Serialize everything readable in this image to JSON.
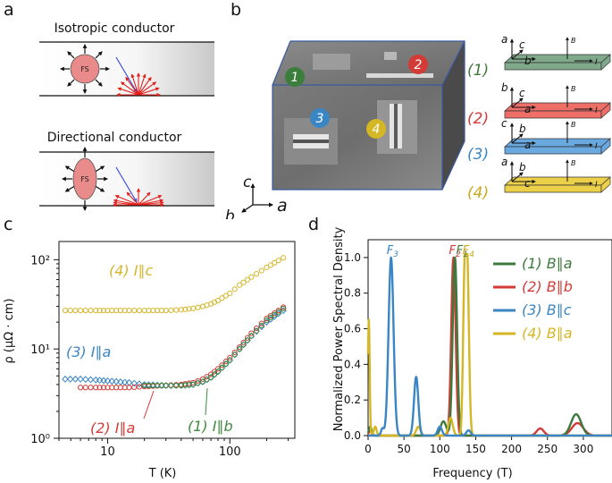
{
  "panel_labels": {
    "a": "a",
    "b": "b",
    "c": "c",
    "d": "d"
  },
  "panel_a": {
    "isotropic_title": "Isotropic conductor",
    "directional_title": "Directional conductor",
    "fs_label": "FS",
    "colors": {
      "fermi_surface": "#e98b8b",
      "arrow": "#e3201b",
      "incident": "#3b4fe0"
    }
  },
  "panel_b": {
    "sample_labels": [
      "1",
      "2",
      "3",
      "4"
    ],
    "sample_colors": [
      "#3b7d3b",
      "#d23b36",
      "#3a86c4",
      "#d5b625"
    ],
    "axes": {
      "c": "c",
      "b": "b",
      "a": "a"
    },
    "configs": [
      {
        "num": "(1)",
        "color": "#3e7a3e",
        "bar_color": "#7fa98a",
        "a1": "a",
        "a2": "c",
        "a3": "b",
        "B": "B",
        "I": "I"
      },
      {
        "num": "(2)",
        "color": "#d23b36",
        "bar_color": "#ee6e68",
        "a1": "b",
        "a2": "c",
        "a3": "a",
        "B": "B",
        "I": "I"
      },
      {
        "num": "(3)",
        "color": "#3a86c4",
        "bar_color": "#6aa8e0",
        "a1": "c",
        "a2": "b",
        "a3": "a",
        "B": "B",
        "I": "I"
      },
      {
        "num": "(4)",
        "color": "#c9a820",
        "bar_color": "#ecd04a",
        "a1": "a",
        "a2": "b",
        "a3": "c",
        "B": "B",
        "I": "I"
      }
    ]
  },
  "chart_data": [
    {
      "type": "scatter",
      "xlabel": "T (K)",
      "ylabel": "ρ (μΩ · cm)",
      "xscale": "log",
      "yscale": "log",
      "xlim": [
        4,
        340
      ],
      "ylim": [
        1,
        160
      ],
      "x_ticks": [
        "10",
        "100"
      ],
      "y_ticks": [
        "10⁰",
        "10¹",
        "10²"
      ],
      "series": [
        {
          "name": "(4) I∥c",
          "color": "#d6b62b",
          "x": [
            4.5,
            6,
            8,
            10,
            15,
            20,
            30,
            40,
            50,
            60,
            70,
            80,
            100,
            120,
            150,
            200,
            250,
            300
          ],
          "y": [
            27,
            27,
            27,
            27,
            27,
            27,
            27,
            27.5,
            28.5,
            30,
            32,
            35,
            42,
            52,
            64,
            82,
            98,
            113
          ]
        },
        {
          "name": "(3) I∥a",
          "color": "#3a86c4",
          "x": [
            4.5,
            6,
            8,
            10,
            15,
            20,
            30,
            40,
            50,
            60,
            70,
            80,
            100,
            120,
            150,
            200,
            250,
            300
          ],
          "y": [
            4.6,
            4.6,
            4.5,
            4.4,
            4.2,
            4.0,
            3.9,
            3.9,
            4.0,
            4.3,
            4.8,
            5.6,
            7.5,
            10,
            14,
            20,
            25,
            29
          ]
        },
        {
          "name": "(2) I∥a",
          "color": "#d23b36",
          "x": [
            6,
            8,
            10,
            15,
            20,
            30,
            40,
            50,
            60,
            70,
            80,
            100,
            120,
            150,
            200,
            250,
            300
          ],
          "y": [
            3.7,
            3.7,
            3.7,
            3.7,
            3.8,
            3.9,
            4.0,
            4.2,
            4.6,
            5.2,
            6.0,
            8.0,
            10.5,
            15,
            22,
            27,
            32
          ]
        },
        {
          "name": "(1) I∥b",
          "color": "#3e8a3e",
          "x": [
            20,
            30,
            40,
            50,
            60,
            70,
            80,
            100,
            120,
            150,
            200,
            250,
            300
          ],
          "y": [
            3.9,
            3.9,
            3.9,
            4.0,
            4.3,
            4.8,
            5.6,
            7.5,
            10,
            14,
            21,
            26,
            31
          ]
        }
      ],
      "annotations": [
        "(4) I∥c",
        "(3) I∥a",
        "(2) I∥a",
        "(1) I∥b"
      ]
    },
    {
      "type": "line",
      "xlabel": "Frequency (T)",
      "ylabel": "Normalized Power Spectral Density",
      "xlim": [
        0,
        340
      ],
      "ylim": [
        0,
        1.1
      ],
      "x_ticks": [
        0,
        50,
        100,
        150,
        200,
        250,
        300
      ],
      "y_ticks": [
        "0.0",
        "0.2",
        "0.4",
        "0.6",
        "0.8",
        "1.0"
      ],
      "peak_labels": [
        {
          "text": "F",
          "sub": "3",
          "x": 32,
          "color": "#3a86c4"
        },
        {
          "text": "F",
          "sub": "2",
          "x": 119,
          "color": "#d23b36"
        },
        {
          "text": "F",
          "sub": "1",
          "x": 129,
          "color": "#3e7a3e"
        },
        {
          "text": "F",
          "sub": "4",
          "x": 138,
          "color": "#c9a820"
        }
      ],
      "series": [
        {
          "name": "(1) B∥a",
          "color": "#3e7a3e",
          "peaks": [
            [
              121,
              1.0,
              3
            ],
            [
              105,
              0.08,
              4
            ],
            [
              290,
              0.12,
              7
            ],
            [
              3,
              0.05,
              2
            ]
          ]
        },
        {
          "name": "(2) B∥b",
          "color": "#d23b36",
          "peaks": [
            [
              119,
              1.0,
              3
            ],
            [
              240,
              0.04,
              5
            ],
            [
              292,
              0.07,
              8
            ],
            [
              3,
              0.03,
              2
            ]
          ]
        },
        {
          "name": "(3) B∥c",
          "color": "#3a86c4",
          "peaks": [
            [
              32,
              1.0,
              3.5
            ],
            [
              67,
              0.33,
              3
            ],
            [
              100,
              0.05,
              3
            ],
            [
              20,
              0.04,
              2
            ],
            [
              140,
              0.03,
              3
            ]
          ]
        },
        {
          "name": "(4) B∥a",
          "color": "#d5b625",
          "peaks": [
            [
              138,
              1.0,
              2.5
            ],
            [
              134,
              0.65,
              2
            ],
            [
              1,
              0.65,
              1.2
            ],
            [
              70,
              0.05,
              3
            ],
            [
              115,
              0.1,
              3
            ],
            [
              10,
              0.05,
              2
            ]
          ]
        }
      ]
    }
  ]
}
